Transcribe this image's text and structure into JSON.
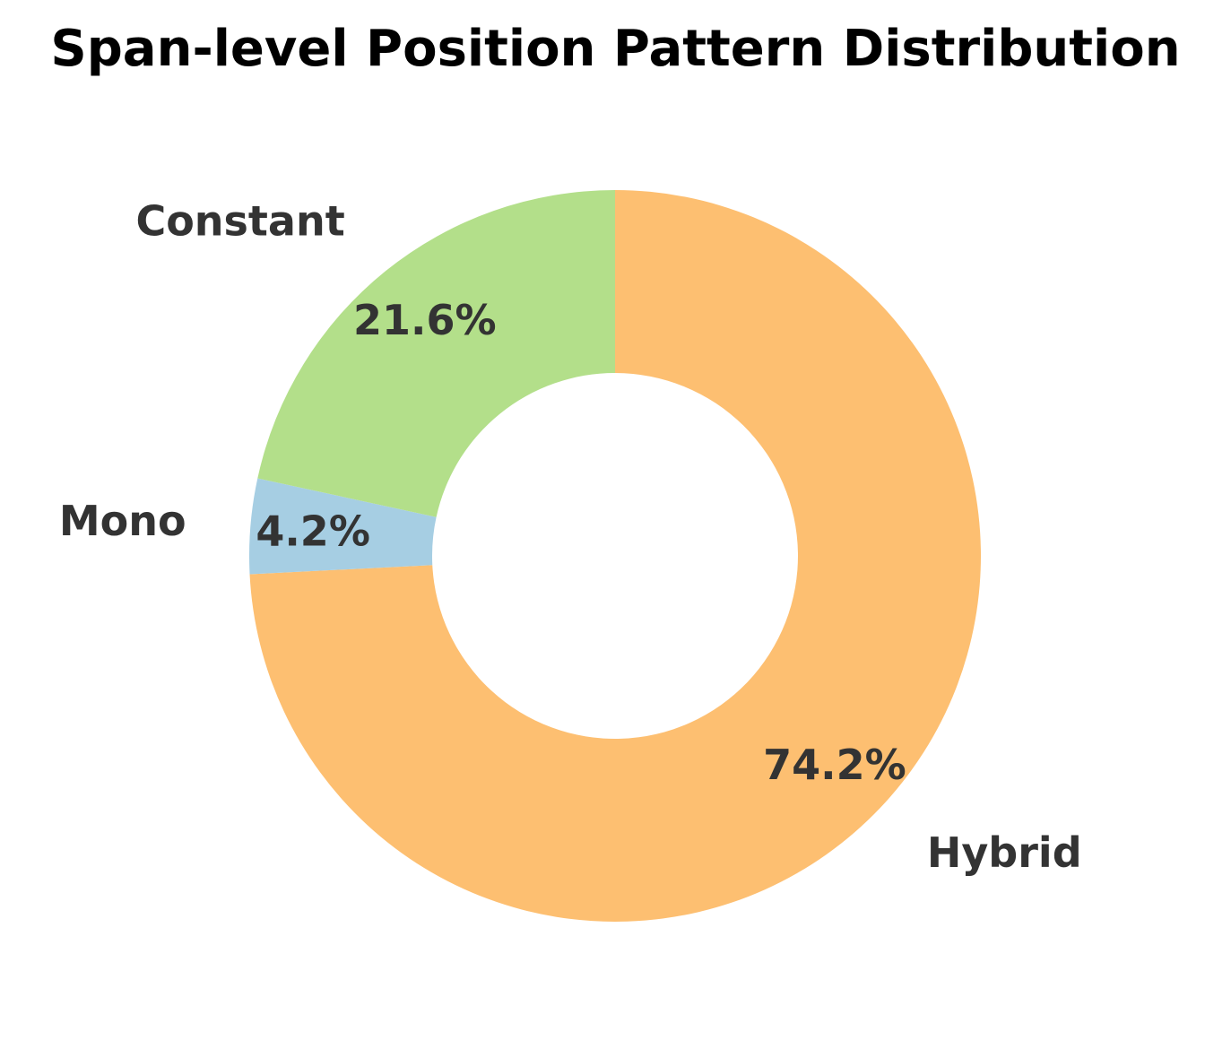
{
  "chart_data": {
    "type": "pie",
    "style": "donut",
    "title": "Span-level Position Pattern Distribution",
    "categories": [
      "Hybrid",
      "Mono",
      "Constant"
    ],
    "values": [
      74.2,
      4.2,
      21.6
    ],
    "pct_labels": [
      "74.2%",
      "4.2%",
      "21.6%"
    ],
    "colors": [
      "#fdbf71",
      "#a6cee3",
      "#b3df8a"
    ],
    "start_angle_deg": 90,
    "direction": "clockwise",
    "legend": "none"
  }
}
